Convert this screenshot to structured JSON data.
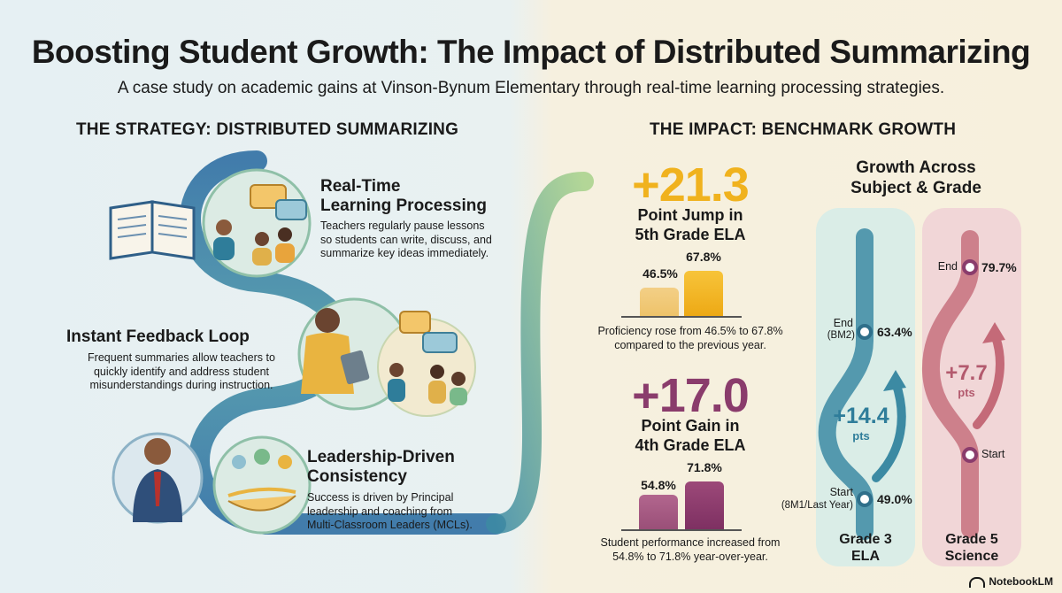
{
  "title": "Boosting Student Growth: The Impact of Distributed Summarizing",
  "subtitle": "A case study on academic gains at Vinson-Bynum Elementary through real-time learning processing strategies.",
  "strategy": {
    "heading": "THE STRATEGY: DISTRIBUTED SUMMARIZING",
    "items": [
      {
        "title_line1": "Real-Time",
        "title_line2": "Learning Processing",
        "desc": [
          "Teachers regularly pause lessons",
          "so students can write, discuss, and",
          "summarize key ideas immediately."
        ]
      },
      {
        "title": "Instant Feedback Loop",
        "desc": [
          "Frequent summaries allow teachers to",
          "quickly identify and address student",
          "misunderstandings during instruction."
        ]
      },
      {
        "title_line1": "Leadership-Driven",
        "title_line2": "Consistency",
        "desc": [
          "Success is driven by Principal",
          "leadership and coaching from",
          "Multi-Classroom Leaders (MCLs)."
        ]
      }
    ]
  },
  "impact": {
    "heading": "THE IMPACT: BENCHMARK GROWTH",
    "stat1": {
      "value": "+21.3",
      "label_line1": "Point Jump in",
      "label_line2": "5th Grade ELA",
      "bar_before": "46.5%",
      "bar_after": "67.8%",
      "before_value": 46.5,
      "after_value": 67.8,
      "note_line1": "Proficiency rose from 46.5% to 67.8%",
      "note_line2": "compared to the previous year.",
      "color": "#f0b21e"
    },
    "stat2": {
      "value": "+17.0",
      "label_line1": "Point Gain in",
      "label_line2": "4th Grade ELA",
      "bar_before": "54.8%",
      "bar_after": "71.8%",
      "before_value": 54.8,
      "after_value": 71.8,
      "note_line1": "Student performance increased from",
      "note_line2": "54.8% to 71.8% year-over-year.",
      "color": "#8a3c6c"
    }
  },
  "growth": {
    "title_line1": "Growth Across",
    "title_line2": "Subject & Grade",
    "grade3": {
      "end_label": "End",
      "end_sub": "(BM2)",
      "end_value": "63.4%",
      "gain": "+14.4",
      "gain_unit": "pts",
      "start_label": "Start",
      "start_sub": "(8M1/Last Year)",
      "start_value": "49.0%",
      "name_line1": "Grade 3",
      "name_line2": "ELA"
    },
    "grade5": {
      "end_label": "End",
      "end_value": "79.7%",
      "gain": "+7.7",
      "gain_unit": "pts",
      "start_label": "Start",
      "name_line1": "Grade 5",
      "name_line2": "Science"
    }
  },
  "footer": {
    "brand": "NotebookLM"
  },
  "colors": {
    "teal": "#2f7d9a",
    "green": "#79b98a",
    "gold": "#f0b21e",
    "plum": "#8a3c6c",
    "rose": "#c46a78"
  }
}
